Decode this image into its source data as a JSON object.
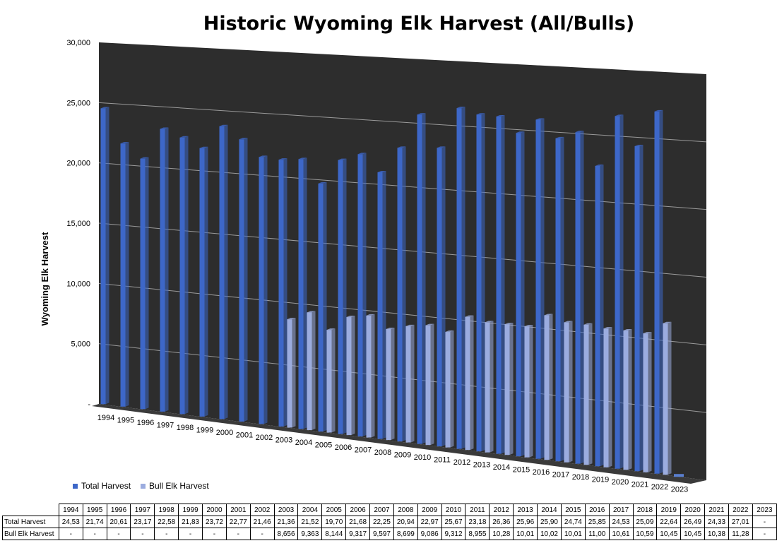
{
  "chart_data": {
    "type": "bar",
    "title": "Historic Wyoming Elk Harvest (All/Bulls)",
    "ylabel": "Wyoming Elk Harvest",
    "xlabel": "",
    "ylim": [
      0,
      30000
    ],
    "y_ticks": [
      "-",
      "5,000",
      "10,000",
      "15,000",
      "20,000",
      "25,000",
      "30,000"
    ],
    "y_tick_values": [
      0,
      5000,
      10000,
      15000,
      20000,
      25000,
      30000
    ],
    "grid": true,
    "legend_position": "bottom-left",
    "categories": [
      "1994",
      "1995",
      "1996",
      "1997",
      "1998",
      "1999",
      "2000",
      "2001",
      "2002",
      "2003",
      "2004",
      "2005",
      "2006",
      "2007",
      "2008",
      "2009",
      "2010",
      "2011",
      "2012",
      "2013",
      "2014",
      "2015",
      "2016",
      "2017",
      "2018",
      "2019",
      "2020",
      "2021",
      "2022",
      "2023"
    ],
    "series": [
      {
        "name": "Total Harvest",
        "color": "#3d67c8",
        "values": [
          24530,
          21740,
          20610,
          23170,
          22580,
          21830,
          23720,
          22770,
          21460,
          21360,
          21520,
          19700,
          21680,
          22250,
          20940,
          22970,
          25670,
          23180,
          26360,
          25960,
          25900,
          24740,
          25850,
          24530,
          25090,
          22640,
          26490,
          24330,
          27010,
          0
        ],
        "table_values": [
          "24,53",
          "21,74",
          "20,61",
          "23,17",
          "22,58",
          "21,83",
          "23,72",
          "22,77",
          "21,46",
          "21,36",
          "21,52",
          "19,70",
          "21,68",
          "22,25",
          "20,94",
          "22,97",
          "25,67",
          "23,18",
          "26,36",
          "25,96",
          "25,90",
          "24,74",
          "25,85",
          "24,53",
          "25,09",
          "22,64",
          "26,49",
          "24,33",
          "27,01",
          "-"
        ]
      },
      {
        "name": "Bull Elk Harvest",
        "color": "#9bacdf",
        "values": [
          0,
          0,
          0,
          0,
          0,
          0,
          0,
          0,
          0,
          8656,
          9363,
          8144,
          9317,
          9597,
          8699,
          9086,
          9312,
          8955,
          10280,
          10010,
          10020,
          10010,
          11000,
          10610,
          10590,
          10450,
          10450,
          10380,
          11280,
          0
        ],
        "table_values": [
          "-",
          "-",
          "-",
          "-",
          "-",
          "-",
          "-",
          "-",
          "-",
          "8,656",
          "9,363",
          "8,144",
          "9,317",
          "9,597",
          "8,699",
          "9,086",
          "9,312",
          "8,955",
          "10,28",
          "10,01",
          "10,02",
          "10,01",
          "11,00",
          "10,61",
          "10,59",
          "10,45",
          "10,45",
          "10,38",
          "11,28",
          "-"
        ]
      }
    ]
  },
  "colors": {
    "plot_background": "#2d2d2d",
    "floor": "#3a3a3a",
    "gridline": "#9a9a9a"
  }
}
